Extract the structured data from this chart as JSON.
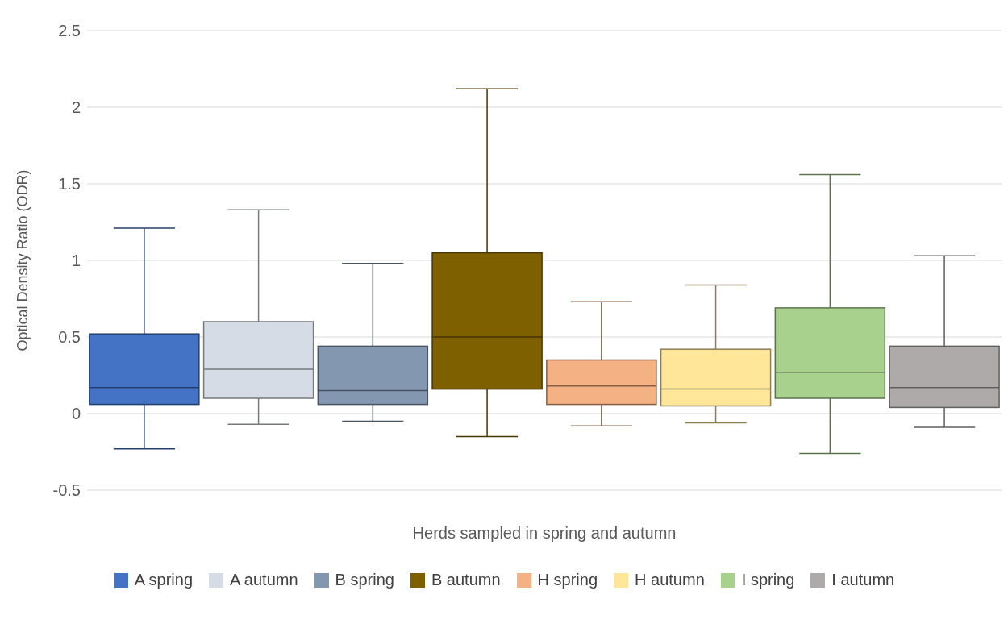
{
  "chart_data": {
    "type": "box",
    "xlabel": "Herds sampled in spring and autumn",
    "ylabel": "Optical Density Ratio (ODR)",
    "categories": [
      null,
      null,
      null,
      null,
      null,
      null,
      null,
      null
    ],
    "ylim": [
      -0.5,
      2.5
    ],
    "yticks": [
      -0.5,
      0,
      0.5,
      1,
      1.5,
      2,
      2.5
    ],
    "grid": "y",
    "legend": "bottom",
    "tick_labels": "y",
    "series": [
      {
        "name": "A spring",
        "color": "#4472c4",
        "boxes": [
          {
            "low": -0.23,
            "q1": 0.06,
            "median": 0.17,
            "q3": 0.52,
            "high": 1.21
          },
          null,
          null,
          null,
          null,
          null,
          null,
          null
        ]
      },
      {
        "name": "A autumn",
        "color": "#d6dce5",
        "boxes": [
          null,
          {
            "low": -0.07,
            "q1": 0.1,
            "median": 0.29,
            "q3": 0.6,
            "high": 1.33
          },
          null,
          null,
          null,
          null,
          null,
          null
        ]
      },
      {
        "name": "B spring",
        "color": "#8497b0",
        "boxes": [
          null,
          null,
          {
            "low": -0.05,
            "q1": 0.06,
            "median": 0.15,
            "q3": 0.44,
            "high": 0.98
          },
          null,
          null,
          null,
          null,
          null
        ]
      },
      {
        "name": "B autumn",
        "color": "#7f6000",
        "boxes": [
          null,
          null,
          null,
          {
            "low": -0.15,
            "q1": 0.16,
            "median": 0.5,
            "q3": 1.05,
            "high": 2.12
          },
          null,
          null,
          null,
          null
        ]
      },
      {
        "name": "H spring",
        "color": "#f4b183",
        "boxes": [
          null,
          null,
          null,
          null,
          {
            "low": -0.08,
            "q1": 0.06,
            "median": 0.18,
            "q3": 0.35,
            "high": 0.73
          },
          null,
          null,
          null
        ]
      },
      {
        "name": "H autumn",
        "color": "#ffe699",
        "boxes": [
          null,
          null,
          null,
          null,
          null,
          {
            "low": -0.06,
            "q1": 0.05,
            "median": 0.16,
            "q3": 0.42,
            "high": 0.84
          },
          null,
          null
        ]
      },
      {
        "name": "I spring",
        "color": "#a9d18e",
        "boxes": [
          null,
          null,
          null,
          null,
          null,
          null,
          {
            "low": -0.26,
            "q1": 0.1,
            "median": 0.27,
            "q3": 0.69,
            "high": 1.56
          },
          null
        ]
      },
      {
        "name": "I autumn",
        "color": "#aeaaaa",
        "boxes": [
          null,
          null,
          null,
          null,
          null,
          null,
          null,
          {
            "low": -0.09,
            "q1": 0.04,
            "median": 0.17,
            "q3": 0.44,
            "high": 1.03
          }
        ]
      }
    ]
  }
}
